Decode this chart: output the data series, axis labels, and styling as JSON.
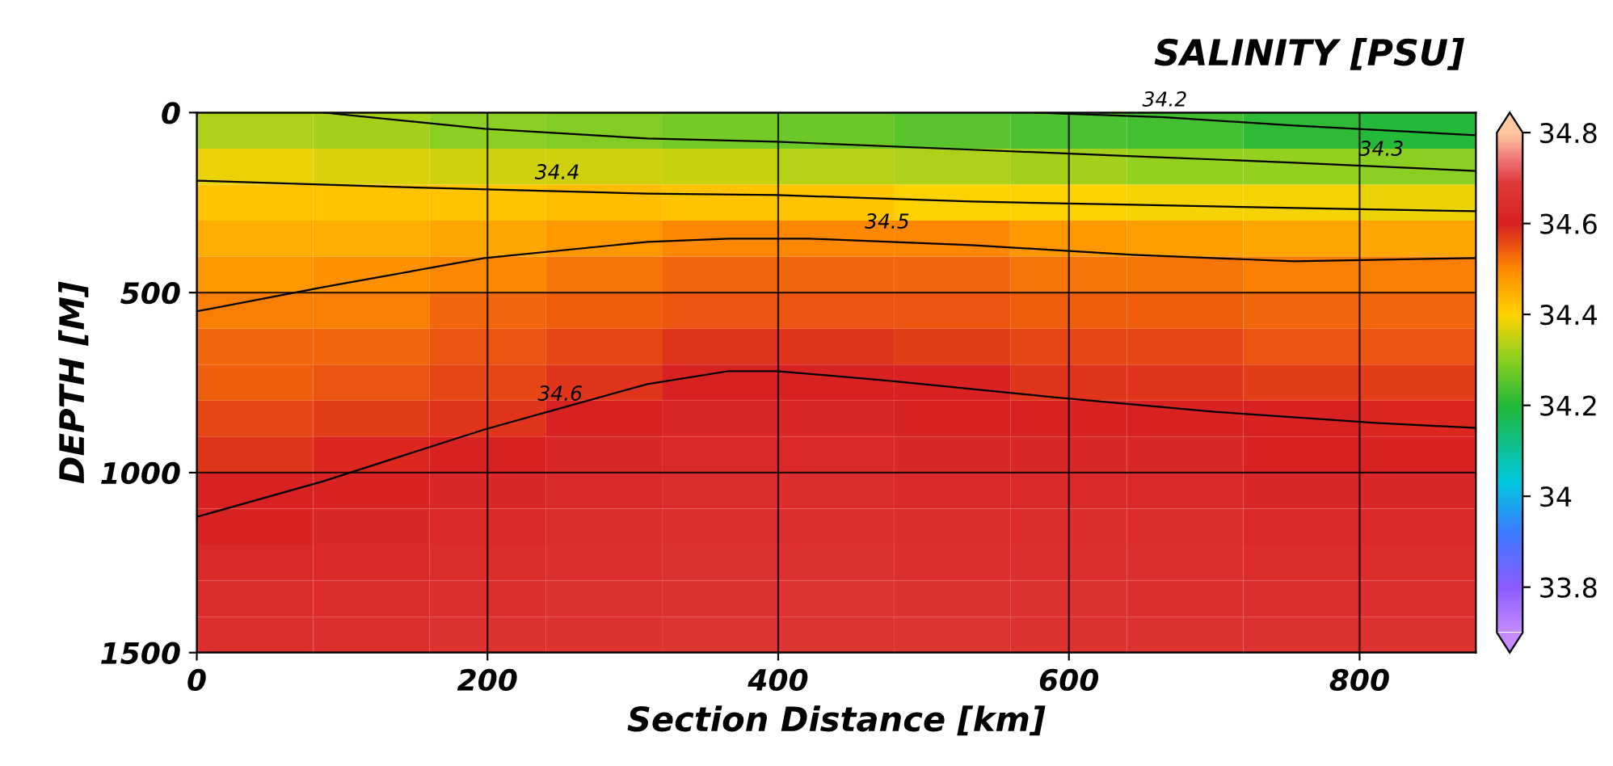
{
  "chart_data": {
    "type": "heatmap",
    "title": "SALINITY [PSU]",
    "xlabel": "Section Distance [km]",
    "ylabel": "DEPTH [M]",
    "xlim": [
      0,
      880
    ],
    "xticks": [
      0,
      200,
      400,
      600,
      800
    ],
    "ylim": [
      1500,
      0
    ],
    "yticks": [
      0,
      500,
      1000,
      1500
    ],
    "clim": [
      33.7,
      34.8
    ],
    "cticks": [
      33.8,
      34,
      34.2,
      34.4,
      34.6,
      34.8
    ],
    "grid": true,
    "cells": [
      [
        34.33,
        34.32,
        34.3,
        34.29,
        34.28,
        34.27,
        34.25,
        34.24,
        34.23,
        34.21,
        34.2
      ],
      [
        34.38,
        34.37,
        34.36,
        34.36,
        34.35,
        34.34,
        34.33,
        34.32,
        34.31,
        34.31,
        34.3
      ],
      [
        34.42,
        34.42,
        34.42,
        34.43,
        34.42,
        34.42,
        34.4,
        34.4,
        34.39,
        34.39,
        34.38
      ],
      [
        34.45,
        34.45,
        34.46,
        34.48,
        34.5,
        34.5,
        34.5,
        34.48,
        34.47,
        34.46,
        34.46
      ],
      [
        34.48,
        34.49,
        34.5,
        34.52,
        34.53,
        34.53,
        34.53,
        34.52,
        34.52,
        34.51,
        34.51
      ],
      [
        34.51,
        34.51,
        34.53,
        34.54,
        34.55,
        34.55,
        34.55,
        34.54,
        34.54,
        34.53,
        34.53
      ],
      [
        34.53,
        34.53,
        34.55,
        34.56,
        34.58,
        34.58,
        34.57,
        34.56,
        34.56,
        34.55,
        34.55
      ],
      [
        34.54,
        34.55,
        34.56,
        34.58,
        34.6,
        34.6,
        34.6,
        34.58,
        34.58,
        34.57,
        34.57
      ],
      [
        34.56,
        34.57,
        34.58,
        34.6,
        34.62,
        34.62,
        34.61,
        34.61,
        34.6,
        34.6,
        34.59
      ],
      [
        34.58,
        34.59,
        34.6,
        34.62,
        34.63,
        34.63,
        34.62,
        34.62,
        34.62,
        34.61,
        34.61
      ],
      [
        34.6,
        34.61,
        34.62,
        34.63,
        34.64,
        34.64,
        34.63,
        34.63,
        34.63,
        34.62,
        34.62
      ],
      [
        34.61,
        34.62,
        34.63,
        34.64,
        34.65,
        34.65,
        34.64,
        34.64,
        34.64,
        34.63,
        34.63
      ],
      [
        34.63,
        34.63,
        34.64,
        34.65,
        34.66,
        34.66,
        34.65,
        34.65,
        34.65,
        34.64,
        34.64
      ],
      [
        34.64,
        34.64,
        34.65,
        34.66,
        34.66,
        34.67,
        34.66,
        34.66,
        34.65,
        34.65,
        34.65
      ],
      [
        34.65,
        34.65,
        34.66,
        34.66,
        34.67,
        34.67,
        34.67,
        34.66,
        34.66,
        34.66,
        34.66
      ]
    ],
    "series": [
      {
        "type": "line",
        "color": "#000000",
        "x": [
          577,
          666,
          755,
          880
        ],
        "values": [
          0,
          13,
          36,
          63
        ]
      },
      {
        "type": "line",
        "color": "#000000",
        "x": [
          87,
          198,
          310,
          399,
          533,
          644,
          755,
          880
        ],
        "values": [
          0,
          45,
          72,
          81,
          103,
          121,
          139,
          162
        ]
      },
      {
        "type": "line",
        "color": "#000000",
        "x": [
          0,
          143,
          310,
          399,
          533,
          644,
          755,
          880
        ],
        "values": [
          189,
          207,
          225,
          229,
          247,
          256,
          265,
          274
        ]
      },
      {
        "type": "line",
        "color": "#000000",
        "x": [
          0,
          87,
          198,
          310,
          366,
          421,
          533,
          644,
          755,
          880
        ],
        "values": [
          552,
          485,
          404,
          359,
          350,
          350,
          368,
          395,
          413,
          404
        ]
      },
      {
        "type": "line",
        "color": "#000000",
        "x": [
          0,
          87,
          198,
          310,
          366,
          399,
          477,
          588,
          700,
          811,
          880
        ],
        "values": [
          1123,
          1024,
          880,
          754,
          718,
          718,
          745,
          790,
          831,
          862,
          876
        ]
      }
    ],
    "annotations": [
      {
        "text": "34.2",
        "x": 666,
        "y": 13
      },
      {
        "text": "34.3",
        "x": 815,
        "y": 150
      },
      {
        "text": "34.4",
        "x": 248,
        "y": 215
      },
      {
        "text": "34.5",
        "x": 475,
        "y": 352
      },
      {
        "text": "34.6",
        "x": 250,
        "y": 830
      }
    ]
  }
}
